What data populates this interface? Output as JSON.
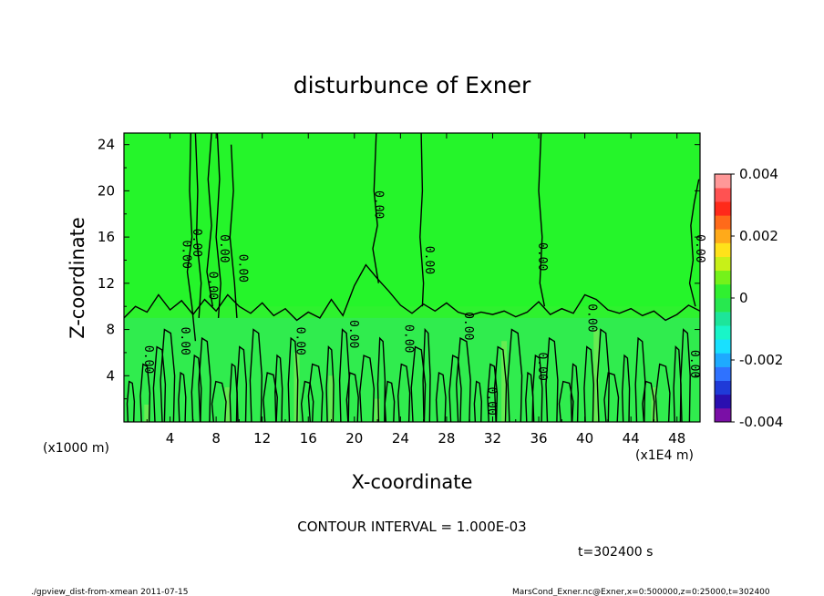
{
  "chart_data": {
    "type": "heatmap",
    "title": "disturbunce of Exner",
    "xlabel": "X-coordinate",
    "ylabel": "Z-coordinate",
    "x_unit": "(x1000 m)",
    "x_scale_note": "(x1E4 m)",
    "xlim": [
      0,
      50
    ],
    "ylim": [
      0,
      25
    ],
    "x_ticks": [
      "4",
      "8",
      "12",
      "16",
      "20",
      "24",
      "28",
      "32",
      "36",
      "40",
      "44",
      "48"
    ],
    "y_ticks": [
      "4",
      "8",
      "12",
      "16",
      "20",
      "24"
    ],
    "contour_labels": [
      "0.00",
      "0.00",
      "0.00",
      "0.00",
      "0.00",
      "0.00",
      "0.00",
      "0.00",
      "0.00",
      "0.00",
      "0.00",
      "0.00",
      "0.00",
      "0.00",
      "0.00",
      "0.00",
      "0.00",
      "0.00",
      "0.00"
    ],
    "colorbar": {
      "range": [
        -0.004,
        0.004
      ],
      "tick_labels": [
        "0.004",
        "0.002",
        "0",
        "-0.002",
        "-0.004"
      ],
      "colors": [
        "#7a0fa6",
        "#2a0fb0",
        "#1f3ad8",
        "#2f72ff",
        "#1eaaff",
        "#19e0ff",
        "#19f5c8",
        "#1de59a",
        "#27e84f",
        "#30f030",
        "#74f21a",
        "#c8f018",
        "#ffe21a",
        "#ffaa1a",
        "#ff6a1a",
        "#ff2a1a",
        "#ff5252",
        "#ff9898"
      ]
    },
    "field_colors": {
      "background": "#2ef22e",
      "upper": "#25f52a",
      "lower": "#33e86a",
      "patch": "#8ceb55"
    }
  },
  "footer": {
    "contour_interval": "CONTOUR INTERVAL = 1.000E-03",
    "time": "t=302400 s",
    "left_note": "./gpview_dist-from-xmean  2011-07-15",
    "right_note": "MarsCond_Exner.nc@Exner,x=0:500000,z=0:25000,t=302400"
  }
}
